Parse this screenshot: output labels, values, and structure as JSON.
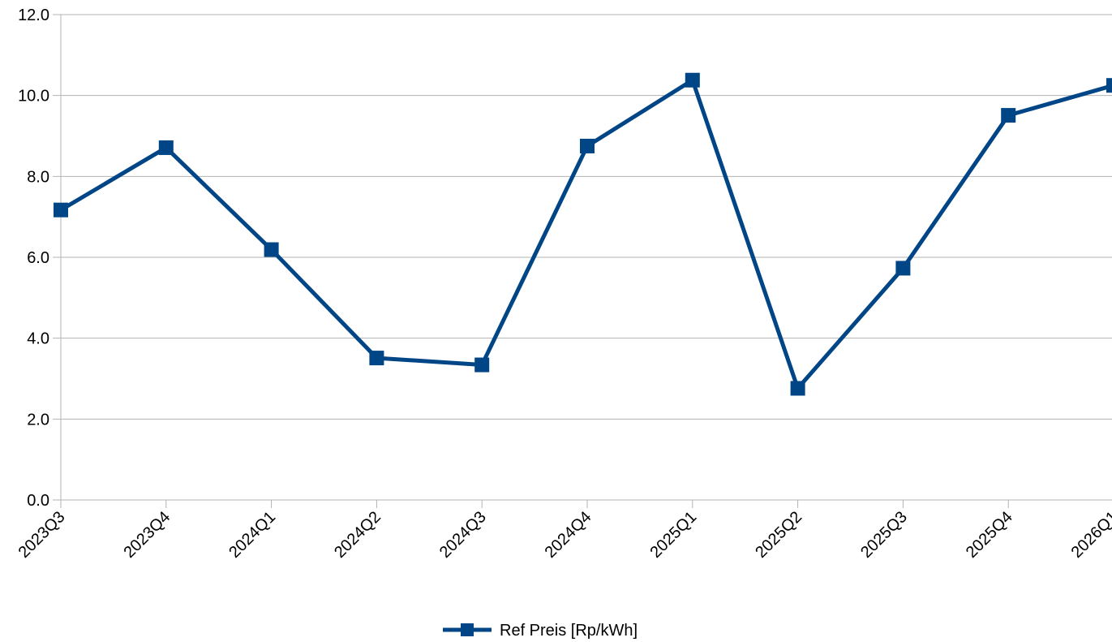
{
  "chart_data": {
    "type": "line",
    "title": "",
    "xlabel": "",
    "ylabel": "",
    "categories": [
      "2023Q3",
      "2023Q4",
      "2024Q1",
      "2024Q2",
      "2024Q3",
      "2024Q4",
      "2025Q1",
      "2025Q2",
      "2025Q3",
      "2025Q4",
      "2026Q1"
    ],
    "series": [
      {
        "name": "Ref Preis [Rp/kWh]",
        "color": "#004586",
        "marker": "square",
        "values": [
          7.17,
          8.71,
          6.19,
          3.51,
          3.34,
          8.75,
          10.38,
          2.76,
          5.73,
          9.51,
          10.25
        ]
      }
    ],
    "ylim": [
      0,
      12
    ],
    "yticks": [
      "0.0",
      "2.0",
      "4.0",
      "6.0",
      "8.0",
      "10.0",
      "12.0"
    ],
    "grid": "horizontal",
    "legend": "bottom-center"
  }
}
